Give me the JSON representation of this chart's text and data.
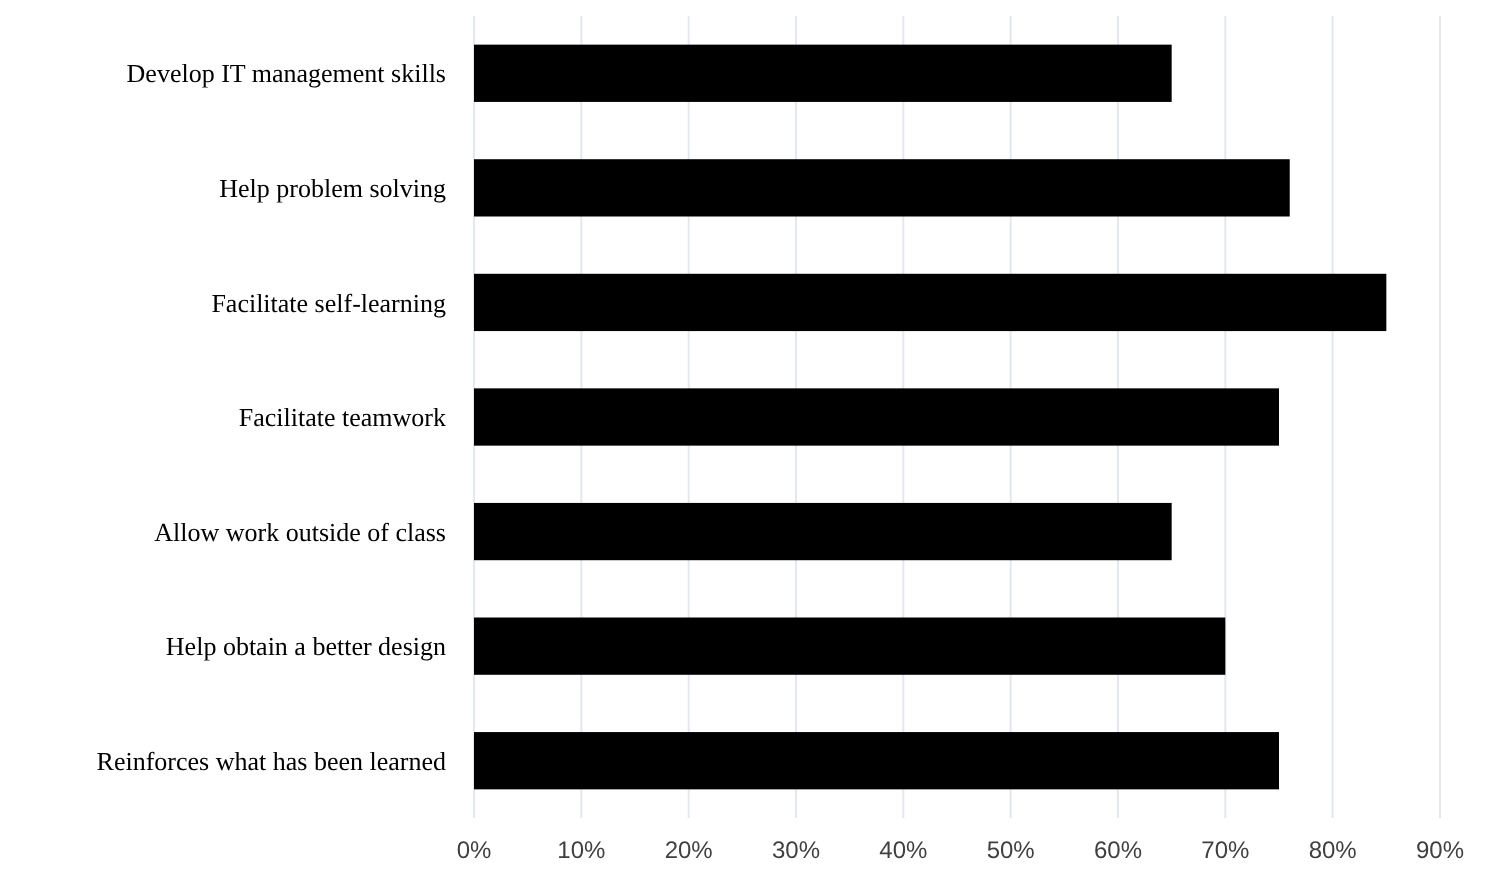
{
  "chart_data": {
    "type": "bar",
    "orientation": "horizontal",
    "categories": [
      "Develop IT management skills",
      "Help problem solving",
      "Facilitate self-learning",
      "Facilitate teamwork",
      "Allow work outside of class",
      "Help obtain a better design",
      "Reinforces what has been learned"
    ],
    "values": [
      65,
      76,
      85,
      75,
      65,
      70,
      75
    ],
    "color": "#000000",
    "xlim": [
      0,
      90
    ],
    "xticks": [
      {
        "value": 0,
        "label": "0%"
      },
      {
        "value": 10,
        "label": "10%"
      },
      {
        "value": 20,
        "label": "20%"
      },
      {
        "value": 30,
        "label": "30%"
      },
      {
        "value": 40,
        "label": "40%"
      },
      {
        "value": 50,
        "label": "50%"
      },
      {
        "value": 60,
        "label": "60%"
      },
      {
        "value": 70,
        "label": "70%"
      },
      {
        "value": 80,
        "label": "80%"
      },
      {
        "value": 90,
        "label": "90%"
      }
    ],
    "grid": "x"
  }
}
